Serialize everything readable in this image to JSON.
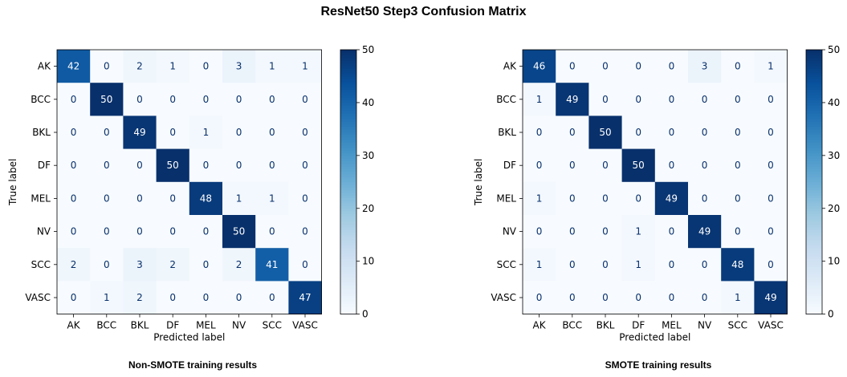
{
  "title": "ResNet50 Step3 Confusion Matrix",
  "captions": {
    "left": "Non-SMOTE training results",
    "right": "SMOTE training results"
  },
  "chart_data": [
    {
      "type": "heatmap",
      "name": "Non-SMOTE training results",
      "xlabel": "Predicted label",
      "ylabel": "True label",
      "x_categories": [
        "AK",
        "BCC",
        "BKL",
        "DF",
        "MEL",
        "NV",
        "SCC",
        "VASC"
      ],
      "y_categories": [
        "AK",
        "BCC",
        "BKL",
        "DF",
        "MEL",
        "NV",
        "SCC",
        "VASC"
      ],
      "values": [
        [
          42,
          0,
          2,
          1,
          0,
          3,
          1,
          1
        ],
        [
          0,
          50,
          0,
          0,
          0,
          0,
          0,
          0
        ],
        [
          0,
          0,
          49,
          0,
          1,
          0,
          0,
          0
        ],
        [
          0,
          0,
          0,
          50,
          0,
          0,
          0,
          0
        ],
        [
          0,
          0,
          0,
          0,
          48,
          1,
          1,
          0
        ],
        [
          0,
          0,
          0,
          0,
          0,
          50,
          0,
          0
        ],
        [
          2,
          0,
          3,
          2,
          0,
          2,
          41,
          0
        ],
        [
          0,
          1,
          2,
          0,
          0,
          0,
          0,
          47
        ]
      ],
      "colorbar": {
        "range": [
          0,
          50
        ],
        "ticks": [
          0,
          10,
          20,
          30,
          40,
          50
        ],
        "colormap": "Blues"
      }
    },
    {
      "type": "heatmap",
      "name": "SMOTE training results",
      "xlabel": "Predicted label",
      "ylabel": "True label",
      "x_categories": [
        "AK",
        "BCC",
        "BKL",
        "DF",
        "MEL",
        "NV",
        "SCC",
        "VASC"
      ],
      "y_categories": [
        "AK",
        "BCC",
        "BKL",
        "DF",
        "MEL",
        "NV",
        "SCC",
        "VASC"
      ],
      "values": [
        [
          46,
          0,
          0,
          0,
          0,
          3,
          0,
          1
        ],
        [
          1,
          49,
          0,
          0,
          0,
          0,
          0,
          0
        ],
        [
          0,
          0,
          50,
          0,
          0,
          0,
          0,
          0
        ],
        [
          0,
          0,
          0,
          50,
          0,
          0,
          0,
          0
        ],
        [
          1,
          0,
          0,
          0,
          49,
          0,
          0,
          0
        ],
        [
          0,
          0,
          0,
          1,
          0,
          49,
          0,
          0
        ],
        [
          1,
          0,
          0,
          1,
          0,
          0,
          48,
          0
        ],
        [
          0,
          0,
          0,
          0,
          0,
          0,
          1,
          49
        ]
      ],
      "colorbar": {
        "range": [
          0,
          50
        ],
        "ticks": [
          0,
          10,
          20,
          30,
          40,
          50
        ],
        "colormap": "Blues"
      }
    }
  ]
}
